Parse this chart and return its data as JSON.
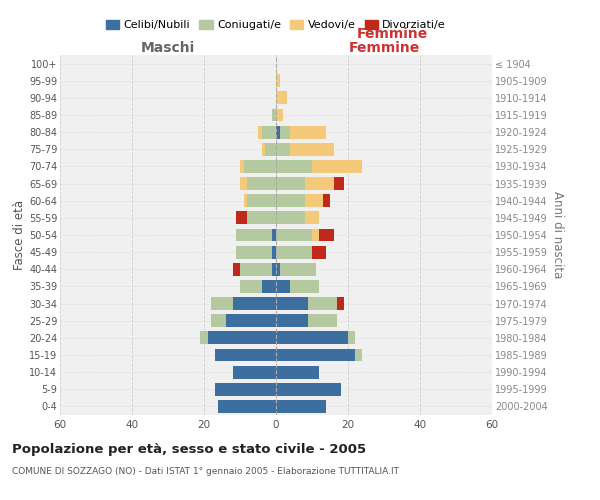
{
  "age_groups": [
    "0-4",
    "5-9",
    "10-14",
    "15-19",
    "20-24",
    "25-29",
    "30-34",
    "35-39",
    "40-44",
    "45-49",
    "50-54",
    "55-59",
    "60-64",
    "65-69",
    "70-74",
    "75-79",
    "80-84",
    "85-89",
    "90-94",
    "95-99",
    "100+"
  ],
  "birth_years": [
    "2000-2004",
    "1995-1999",
    "1990-1994",
    "1985-1989",
    "1980-1984",
    "1975-1979",
    "1970-1974",
    "1965-1969",
    "1960-1964",
    "1955-1959",
    "1950-1954",
    "1945-1949",
    "1940-1944",
    "1935-1939",
    "1930-1934",
    "1925-1929",
    "1920-1924",
    "1915-1919",
    "1910-1914",
    "1905-1909",
    "≤ 1904"
  ],
  "maschi": {
    "celibi": [
      16,
      17,
      12,
      17,
      19,
      14,
      12,
      4,
      1,
      1,
      1,
      0,
      0,
      0,
      0,
      0,
      0,
      0,
      0,
      0,
      0
    ],
    "coniugati": [
      0,
      0,
      0,
      0,
      2,
      4,
      6,
      6,
      9,
      10,
      10,
      8,
      8,
      8,
      9,
      3,
      4,
      1,
      0,
      0,
      0
    ],
    "vedovi": [
      0,
      0,
      0,
      0,
      0,
      0,
      0,
      0,
      0,
      0,
      0,
      0,
      1,
      2,
      1,
      1,
      1,
      0,
      0,
      0,
      0
    ],
    "divorziati": [
      0,
      0,
      0,
      0,
      0,
      0,
      0,
      0,
      2,
      0,
      0,
      3,
      0,
      0,
      0,
      0,
      0,
      0,
      0,
      0,
      0
    ]
  },
  "femmine": {
    "nubili": [
      14,
      18,
      12,
      22,
      20,
      9,
      9,
      4,
      1,
      0,
      0,
      0,
      0,
      0,
      0,
      0,
      1,
      0,
      0,
      0,
      0
    ],
    "coniugate": [
      0,
      0,
      0,
      2,
      2,
      8,
      8,
      8,
      10,
      10,
      10,
      8,
      8,
      8,
      10,
      4,
      3,
      0,
      0,
      0,
      0
    ],
    "vedove": [
      0,
      0,
      0,
      0,
      0,
      0,
      0,
      0,
      0,
      0,
      2,
      4,
      5,
      8,
      14,
      12,
      10,
      2,
      3,
      1,
      0
    ],
    "divorziate": [
      0,
      0,
      0,
      0,
      0,
      0,
      2,
      0,
      0,
      4,
      4,
      0,
      2,
      3,
      0,
      0,
      0,
      0,
      0,
      0,
      0
    ]
  },
  "colors": {
    "celibi": "#3c6fa0",
    "coniugati": "#b5c9a0",
    "vedovi": "#f5c97a",
    "divorziati": "#c0291a"
  },
  "xlim": 60,
  "title": "Popolazione per età, sesso e stato civile - 2005",
  "subtitle": "COMUNE DI SOZZAGO (NO) - Dati ISTAT 1° gennaio 2005 - Elaborazione TUTTITALIA.IT",
  "ylabel_left": "Fasce di età",
  "ylabel_right": "Anni di nascita",
  "xlabel_left": "Maschi",
  "xlabel_right": "Femmine",
  "bg_color": "#f0f0f0",
  "grid_color": "#cccccc"
}
